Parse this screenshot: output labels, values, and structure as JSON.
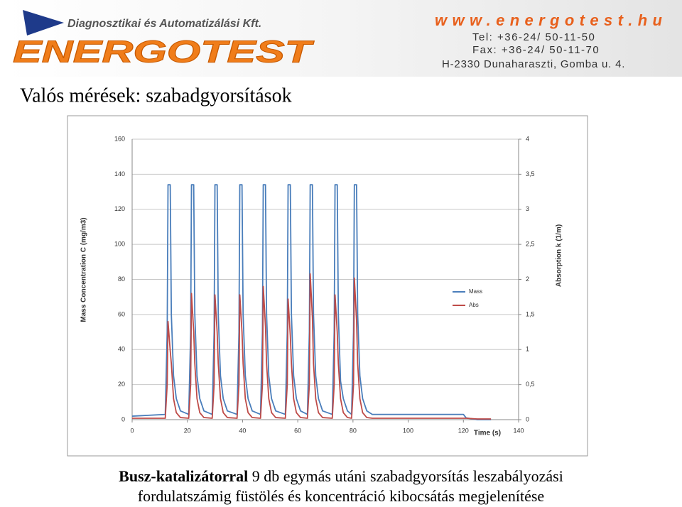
{
  "header": {
    "company": "Diagnosztikai és Automatizálási Kft.",
    "logo": "ENERGOTEST",
    "website": "www.energotest.hu",
    "tel": "Tel: +36-24/ 50-11-50",
    "fax": "Fax: +36-24/ 50-11-70",
    "address": "H-2330 Dunaharaszti, Gomba u. 4."
  },
  "title": "Valós mérések: szabadgyorsítások",
  "chart_data": {
    "type": "line",
    "x_label": "Time (s)",
    "y_label": "Mass Concentration C (mg/m3)",
    "y2_label": "Absorption k (1/m)",
    "xlim": [
      0,
      140
    ],
    "xticks": [
      0,
      20,
      40,
      60,
      80,
      100,
      120,
      140
    ],
    "ylim": [
      0,
      160
    ],
    "yticks": [
      0,
      20,
      40,
      60,
      80,
      100,
      120,
      140,
      160
    ],
    "y2lim": [
      0,
      4
    ],
    "y2ticks": [
      0,
      {
        "value": 0.5,
        "label": "0,5"
      },
      1,
      {
        "value": 1.5,
        "label": "1,5"
      },
      2,
      {
        "value": 2.5,
        "label": "2,5"
      },
      3,
      {
        "value": 3.5,
        "label": "3,5"
      },
      4
    ],
    "grid": true,
    "legend": "right",
    "x": [
      0,
      12,
      12.7,
      13,
      13.8,
      14.2,
      15,
      16,
      17.5,
      20.5,
      21.2,
      21.5,
      22.3,
      22.7,
      23.5,
      24.5,
      26,
      29,
      29.7,
      30,
      30.8,
      31.2,
      32,
      33,
      34.5,
      38,
      38.7,
      39,
      39.8,
      40.2,
      41,
      42,
      43.5,
      46.5,
      47.2,
      47.5,
      48.3,
      48.7,
      49.5,
      50.5,
      52,
      55.5,
      56.2,
      56.5,
      57.3,
      57.7,
      58.5,
      59.5,
      61,
      63.5,
      64.2,
      64.5,
      65.3,
      65.7,
      66.5,
      67.5,
      69,
      72.5,
      73.2,
      73.5,
      74.3,
      74.7,
      75.5,
      76.5,
      78,
      79.5,
      80.2,
      80.5,
      81.3,
      81.7,
      82.5,
      83.5,
      85,
      87,
      100,
      110,
      120,
      121,
      125,
      130
    ],
    "series": [
      {
        "name": "Mass",
        "color": "#4a7ebb",
        "values": [
          2,
          3,
          50,
          134,
          134,
          60,
          25,
          12,
          5,
          3,
          50,
          134,
          134,
          60,
          25,
          12,
          5,
          3,
          50,
          134,
          134,
          60,
          25,
          12,
          5,
          3,
          50,
          134,
          134,
          60,
          25,
          12,
          5,
          3,
          50,
          134,
          134,
          60,
          25,
          12,
          5,
          3,
          50,
          134,
          134,
          60,
          25,
          12,
          5,
          3,
          50,
          134,
          134,
          60,
          25,
          12,
          5,
          3,
          50,
          134,
          134,
          60,
          22,
          12,
          5,
          3,
          50,
          134,
          134,
          60,
          25,
          12,
          5,
          3,
          3,
          3,
          3,
          1,
          0,
          0
        ]
      },
      {
        "name": "Abs",
        "color": "#be4b48",
        "axis": "y2",
        "values": [
          0.02,
          0.02,
          0.5,
          1.4,
          0.98,
          0.8,
          0.3,
          0.1,
          0.03,
          0.02,
          0.5,
          1.8,
          1.26,
          0.8,
          0.3,
          0.1,
          0.03,
          0.02,
          0.5,
          1.78,
          1.25,
          0.8,
          0.3,
          0.1,
          0.03,
          0.02,
          0.5,
          1.78,
          1.25,
          0.8,
          0.3,
          0.1,
          0.03,
          0.02,
          0.5,
          1.9,
          1.33,
          0.8,
          0.3,
          0.1,
          0.03,
          0.02,
          0.5,
          1.72,
          1.2,
          0.8,
          0.3,
          0.1,
          0.03,
          0.02,
          0.5,
          2.08,
          1.46,
          0.8,
          0.3,
          0.1,
          0.03,
          0.02,
          0.5,
          1.78,
          1.25,
          0.8,
          0.3,
          0.1,
          0.03,
          0.02,
          0.5,
          2.02,
          1.41,
          0.8,
          0.3,
          0.1,
          0.03,
          0.02,
          0.02,
          0.02,
          0.02,
          0.02,
          0.01,
          0.01
        ]
      }
    ]
  },
  "caption": {
    "bold": "Busz-katalizátorral",
    "text": "9 db egymás utáni szabadgyorsítás leszabályozási fordulatszámig füstölés és koncentráció kibocsátás megjelenítése"
  }
}
